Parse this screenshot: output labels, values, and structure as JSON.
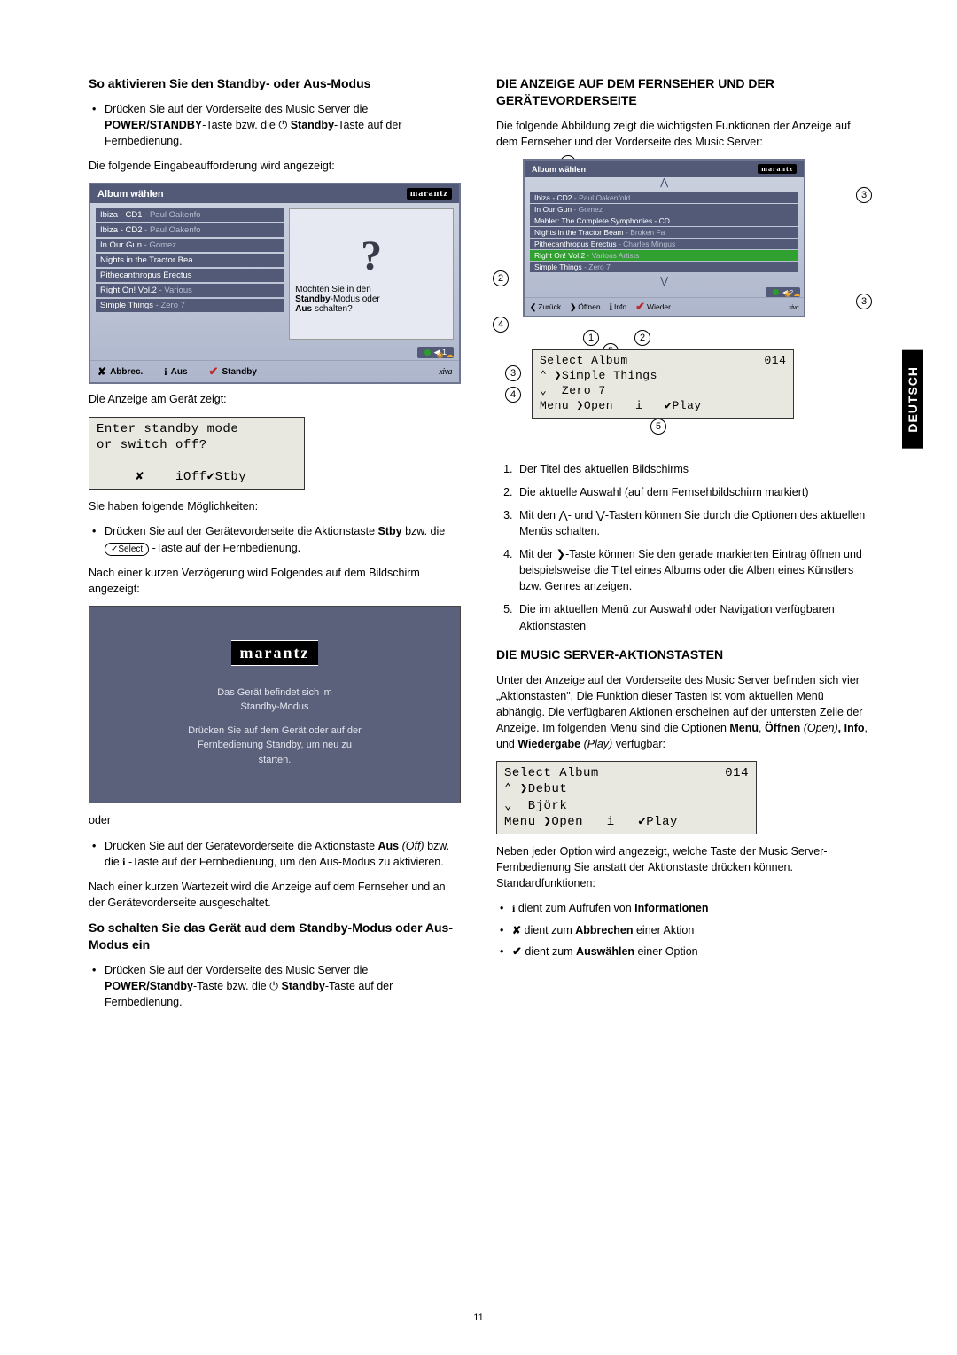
{
  "sideTab": "DEUTSCH",
  "pageNumber": "11",
  "left": {
    "h1": "So aktivieren Sie den Standby- oder Aus-Modus",
    "bul1": "Drücken Sie auf der Vorderseite des Music Server die ",
    "bul1b1": "POWER/STANDBY",
    "bul1mid": "-Taste bzw. die ",
    "bul1icon": "⏻",
    "bul1b2": " Standby",
    "bul1end": "-Taste auf der Fernbedienung.",
    "p1": "Die folgende Eingabeaufforderung wird angezeigt:",
    "tv1": {
      "title": "Album wählen",
      "brand": "marantz",
      "rows": [
        {
          "a": "Ibiza - CD1",
          "b": " - Paul Oakenfo"
        },
        {
          "a": "Ibiza - CD2",
          "b": " - Paul Oakenfo"
        },
        {
          "a": "In Our Gun",
          "b": " - Gomez"
        },
        {
          "a": "Nights in the Tractor Bea",
          "b": ""
        },
        {
          "a": "Pithecanthropus Erectus",
          "b": ""
        },
        {
          "a": "Right On! Vol.2",
          "b": " - Various"
        },
        {
          "a": "Simple Things",
          "b": " - Zero 7"
        }
      ],
      "modal_line1": "Möchten Sie in den",
      "modal_line2a": "Standby",
      "modal_line2b": "-Modus oder",
      "modal_line3a": "Aus",
      "modal_line3b": " schalten?",
      "status_play": "◀ 1",
      "f_cancel": "Abbrec.",
      "f_off": "Aus",
      "f_stby": "Standby",
      "xiva": "xiva"
    },
    "p2": "Die Anzeige am Gerät zeigt:",
    "lcd1_l1": "Enter standby mode",
    "lcd1_l2": "or switch off?",
    "lcd1_l3": "     ✘    iOff✔Stby",
    "p3": "Sie haben folgende Möglichkeiten:",
    "bul2a": "Drücken Sie auf der Gerätevorderseite die Aktionstaste ",
    "bul2b": "Stby",
    "bul2c": " bzw. die ",
    "bul2sel": "✓Select",
    "bul2d": " -Taste auf der Fernbedienung.",
    "p4": "Nach einer kurzen Verzögerung wird Folgendes auf dem Bildschirm angezeigt:",
    "splash": {
      "brand": "marantz",
      "l1": "Das Gerät befindet sich im",
      "l2": "Standby-Modus",
      "l3": "Drücken Sie auf dem Gerät oder auf der",
      "l4": "Fernbedienung Standby, um neu zu",
      "l5": "starten."
    },
    "p5": "oder",
    "bul3a": "Drücken Sie auf der Gerätevorderseite die Aktionstaste ",
    "bul3b": "Aus",
    "bul3c": " (Off) ",
    "bul3d": " bzw. die ",
    "bul3e": " -Taste auf der Fernbedienung, um den Aus-Modus zu aktivieren.",
    "p6": "Nach einer kurzen Wartezeit wird die Anzeige auf dem Fernseher und an der Gerätevorderseite ausgeschaltet.",
    "h2": "So schalten Sie das Gerät aud dem Standby-Modus oder Aus-Modus ein",
    "bul4a": "Drücken Sie auf der Vorderseite des Music Server die ",
    "bul4b": "POWER/Standby",
    "bul4c": "-Taste bzw. die ",
    "bul4icon": "⏻",
    "bul4d": " Standby",
    "bul4e": "-Taste auf der Fernbedienung."
  },
  "right": {
    "h1": "DIE ANZEIGE AUF DEM FERNSEHER UND DER GERÄTEVORDERSEITE",
    "p1": "Die folgende Abbildung zeigt die wichtigsten Funktionen der Anzeige auf dem Fernseher und der Vorderseite des Music Server:",
    "tv2": {
      "title": "Album wählen",
      "brand": "marantz",
      "rows": [
        {
          "a": "Ibiza - CD2",
          "b": " - Paul Oakenfold"
        },
        {
          "a": "In Our Gun",
          "b": " - Gomez"
        },
        {
          "a": "Mahler: The Complete Symphonies - CD",
          "b": " ..."
        },
        {
          "a": "Nights in the Tractor Beam",
          "b": " - Broken Fa"
        },
        {
          "a": "Pithecanthropus Erectus",
          "b": " - Charles Mingus"
        },
        {
          "a": "Right On! Vol.2",
          "b": " - Various Artists",
          "sel": true
        },
        {
          "a": "Simple Things",
          "b": " - Zero 7"
        }
      ],
      "f_back": "Zurück",
      "f_open": "Öffnen",
      "f_info": "Info",
      "f_play": "Wieder.",
      "status_play": "◀ 2",
      "xiva": "xiva"
    },
    "lcd_diag": {
      "l1a": "Select Album",
      "l1b": "014",
      "l2": "⌃ ❯Simple Things",
      "l3": "⌄  Zero 7",
      "l4": "Menu ❯Open   i   ✔Play"
    },
    "ol": [
      "Der Titel des aktuellen Bildschirms",
      "Die aktuelle Auswahl (auf dem Fernsehbildschirm markiert)",
      "Mit den ⋀- und ⋁-Tasten können Sie durch die Optionen des aktuellen Menüs schalten.",
      "Mit der ❯-Taste können Sie den gerade markierten Eintrag öffnen und beispielsweise die Titel eines Albums oder die Alben eines Künstlers bzw. Genres anzeigen.",
      "Die im aktuellen Menü zur Auswahl oder Navigation verfügbaren Aktionstasten"
    ],
    "h2": "DIE MUSIC SERVER-AKTIONSTASTEN",
    "p2a": "Unter der Anzeige auf der Vorderseite des Music Server befinden sich vier „Aktionstasten\". Die Funktion dieser Tasten ist vom aktuellen Menü abhängig. Die verfügbaren Aktionen erscheinen auf der untersten Zeile der Anzeige. Im folgenden Menü sind die Optionen ",
    "p2b": "Menü",
    "p2c": ", ",
    "p2d": "Öffnen",
    "p2e": " (Open)",
    "p2f": ", ",
    "p2g": "Info",
    "p2h": ", und ",
    "p2i": "Wiedergabe",
    "p2j": " (Play)",
    "p2k": " verfügbar:",
    "lcd2": {
      "l1a": "Select Album",
      "l1b": "014",
      "l2": "⌃ ❯Debut",
      "l3": "⌄  Björk",
      "l4": "Menu ❯Open   i   ✔Play"
    },
    "p3": "Neben jeder Option wird angezeigt, welche Taste der Music Server-Fernbedienung Sie anstatt der Aktionstaste drücken können. Standardfunktionen:",
    "bulA1": " dient zum Aufrufen von ",
    "bulA1b": "Informationen",
    "bulA2": " dient zum ",
    "bulA2b": "Abbrechen",
    "bulA2c": " einer Aktion",
    "bulA3": " dient zum ",
    "bulA3b": "Auswählen",
    "bulA3c": " einer Option"
  }
}
